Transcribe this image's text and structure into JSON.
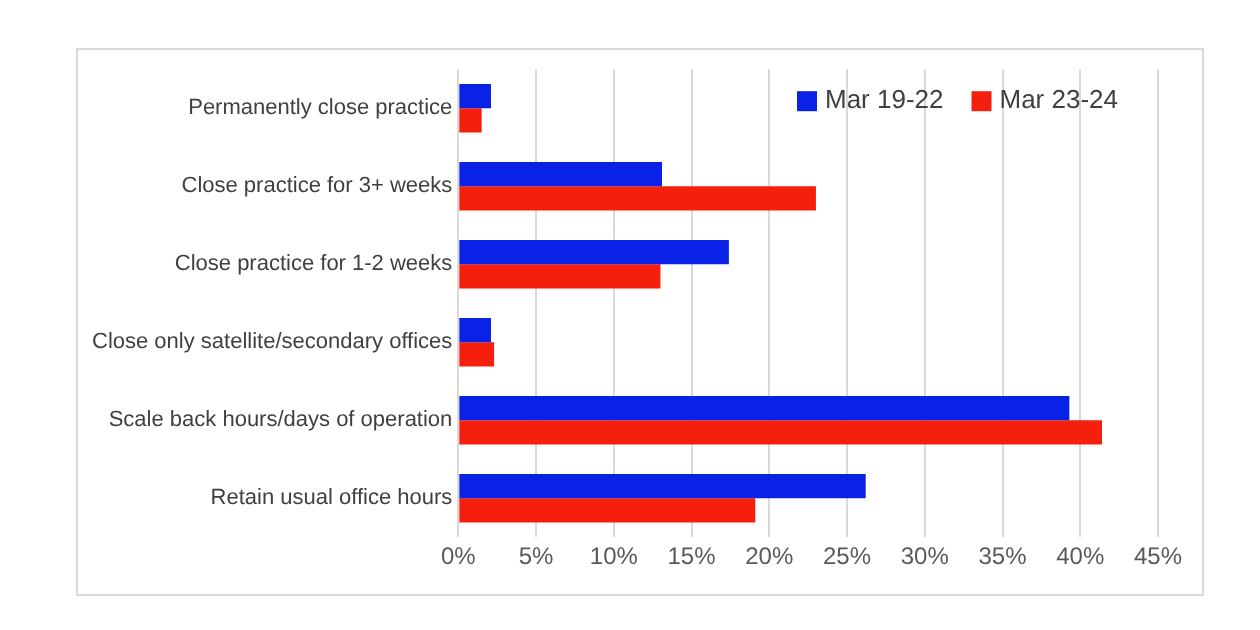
{
  "chart_data": {
    "type": "bar",
    "orientation": "horizontal",
    "categories": [
      "Permanently close practice",
      "Close practice for 3+ weeks",
      "Close practice for 1-2 weeks",
      "Close only satellite/secondary offices",
      "Scale back hours/days of operation",
      "Retain usual office hours"
    ],
    "series": [
      {
        "name": "Mar 19-22",
        "color": "#0a22e6",
        "values": [
          2.1,
          13.1,
          17.4,
          2.1,
          39.3,
          26.2
        ]
      },
      {
        "name": "Mar 23-24",
        "color": "#f41f0c",
        "values": [
          1.5,
          23,
          13,
          2.3,
          41.4,
          19.1
        ]
      }
    ],
    "xlim": [
      0,
      45
    ],
    "xticks": [
      {
        "value": 0,
        "label": "0%"
      },
      {
        "value": 5,
        "label": "5%"
      },
      {
        "value": 10,
        "label": "10%"
      },
      {
        "value": 15,
        "label": "15%"
      },
      {
        "value": 20,
        "label": "20%"
      },
      {
        "value": 25,
        "label": "25%"
      },
      {
        "value": 30,
        "label": "30%"
      },
      {
        "value": 35,
        "label": "35%"
      },
      {
        "value": 40,
        "label": "40%"
      },
      {
        "value": 45,
        "label": "45%"
      }
    ],
    "grid": "x",
    "legend": "top right"
  }
}
